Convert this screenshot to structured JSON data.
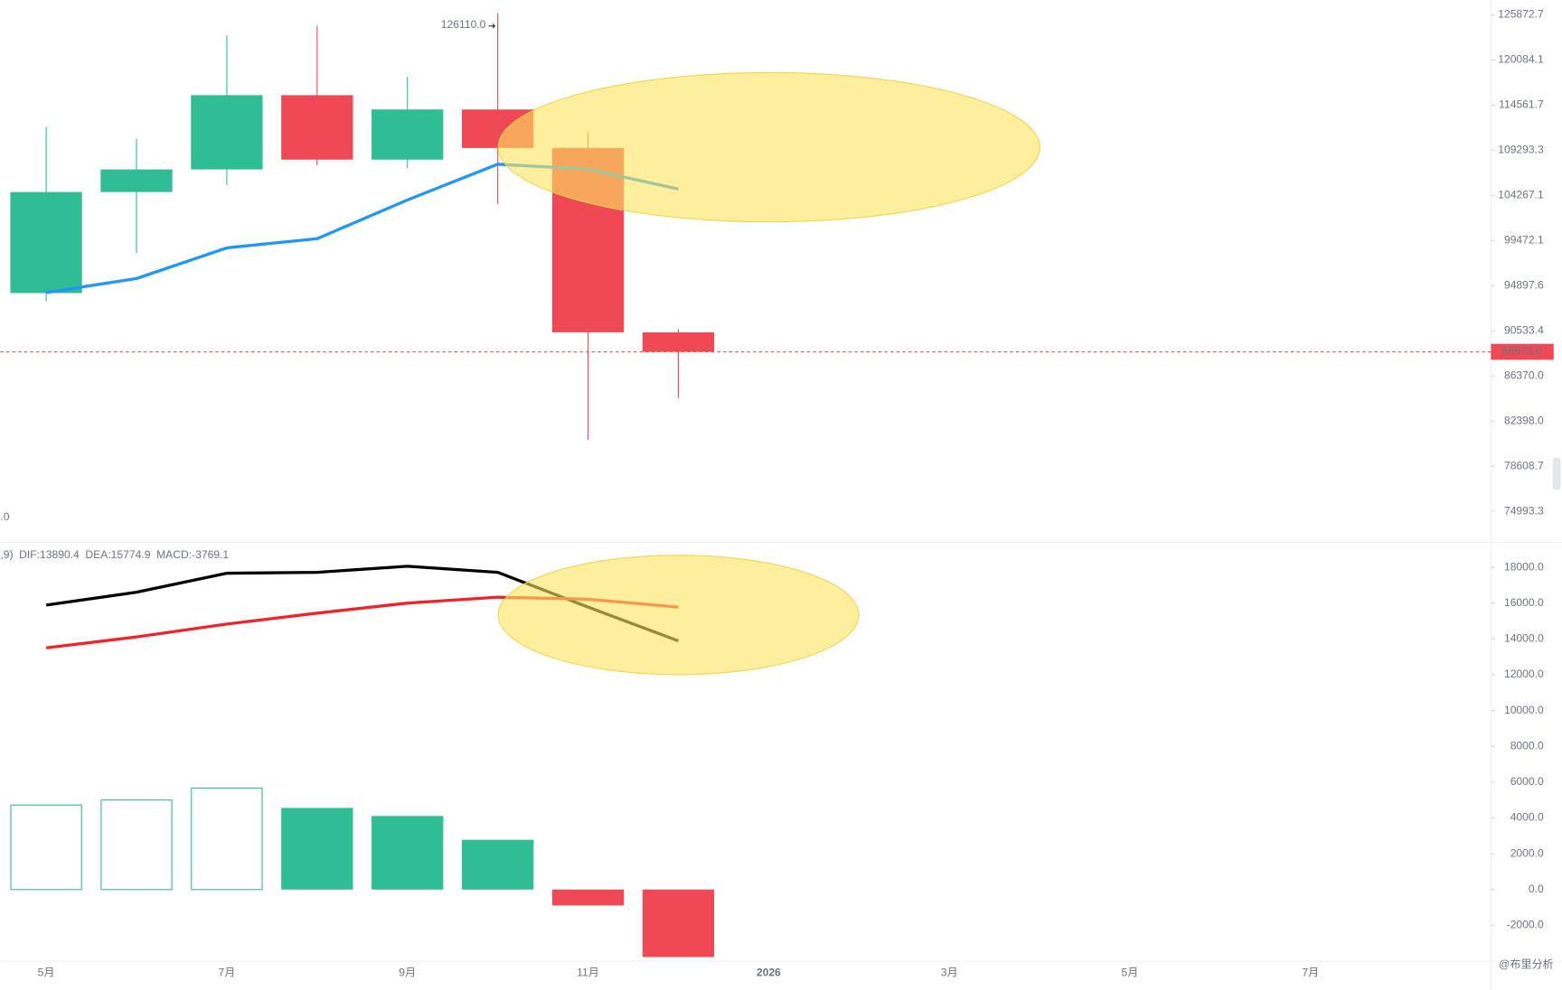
{
  "chart_data": [
    {
      "type": "candlestick",
      "categories": [
        "5月",
        null,
        "7月",
        null,
        "9月",
        null,
        "11月",
        null,
        "2026",
        null,
        "3月",
        null,
        "5月",
        null,
        "7月",
        null
      ],
      "open": [
        94172,
        104638,
        107135,
        115764,
        108236,
        114049,
        109556,
        90394,
        null,
        null,
        null,
        null,
        null,
        null,
        null,
        null
      ],
      "high": [
        111980,
        110600,
        123218,
        124474,
        118000,
        126110,
        111300,
        90700,
        null,
        null,
        null,
        null,
        null,
        null,
        null,
        null
      ],
      "low": [
        93377,
        98200,
        105400,
        107600,
        107270,
        103300,
        80800,
        84400,
        null,
        null,
        null,
        null,
        null,
        null,
        null,
        null
      ],
      "close": [
        104638,
        107135,
        115764,
        108236,
        114049,
        109556,
        90394,
        88573,
        null,
        null,
        null,
        null,
        null,
        null,
        null,
        null
      ],
      "up_color": "#2ebd94",
      "down_color": "#ef4955",
      "ma": {
        "color": "#2196f3",
        "values": [
          94230,
          95610,
          98720,
          99670,
          103780,
          107720,
          107170,
          104970,
          null,
          null,
          null,
          null,
          null,
          null,
          null,
          null
        ]
      },
      "high_label": "126110.0",
      "last_price_label": "88573.0",
      "pane_label": ".0",
      "log": true,
      "ylim": [
        72995,
        127847
      ],
      "yticks": [
        125872.7,
        120084.1,
        114561.7,
        109293.3,
        104267.1,
        99472.1,
        94897.6,
        90533.4,
        {
          "value": 86370,
          "label": "86370.0"
        },
        {
          "value": 82398,
          "label": "82398.0"
        },
        78608.7,
        74993.3
      ]
    },
    {
      "type": "macd",
      "legend_prefix": ",9)",
      "legend": [
        "DIF:13890.4",
        "DEA:15774.9",
        "MACD:-3769.1"
      ],
      "series": [
        {
          "color": "#000000",
          "values": [
            15890,
            16610,
            17670,
            17720,
            18060,
            17720,
            15780,
            13890.4,
            null,
            null,
            null,
            null,
            null,
            null,
            null,
            null
          ]
        },
        {
          "color": "#f0232d",
          "values": [
            13500,
            14110,
            14830,
            15440,
            16000,
            16330,
            16220,
            15774.9,
            null,
            null,
            null,
            null,
            null,
            null,
            null,
            null
          ]
        }
      ],
      "histogram": [
        4720,
        5000,
        5670,
        4560,
        4110,
        2780,
        -890,
        -3769.1,
        null,
        null,
        null,
        null,
        null,
        null,
        null,
        null
      ],
      "histogram_fill": [
        "hollow",
        "hollow",
        "hollow",
        "solid",
        "solid",
        "solid",
        "solid",
        "solid",
        null,
        null,
        null,
        null,
        null,
        null,
        null,
        null
      ],
      "up_color": "#2ebd94",
      "down_color": "#ef4955",
      "ylim": [
        -4000,
        19400
      ],
      "yticks": [
        {
          "value": 18000,
          "label": "18000.0"
        },
        {
          "value": 16000,
          "label": "16000.0"
        },
        {
          "value": 14000,
          "label": "14000.0"
        },
        {
          "value": 12000,
          "label": "12000.0"
        },
        {
          "value": 10000,
          "label": "10000.0"
        },
        {
          "value": 8000,
          "label": "8000.0"
        },
        {
          "value": 6000,
          "label": "6000.0"
        },
        {
          "value": 4000,
          "label": "4000.0"
        },
        {
          "value": 2000,
          "label": "2000.0"
        },
        {
          "value": 0,
          "label": "0.0"
        },
        {
          "value": -2000,
          "label": "-2000.0"
        }
      ]
    }
  ],
  "watermark": "@布里分析"
}
